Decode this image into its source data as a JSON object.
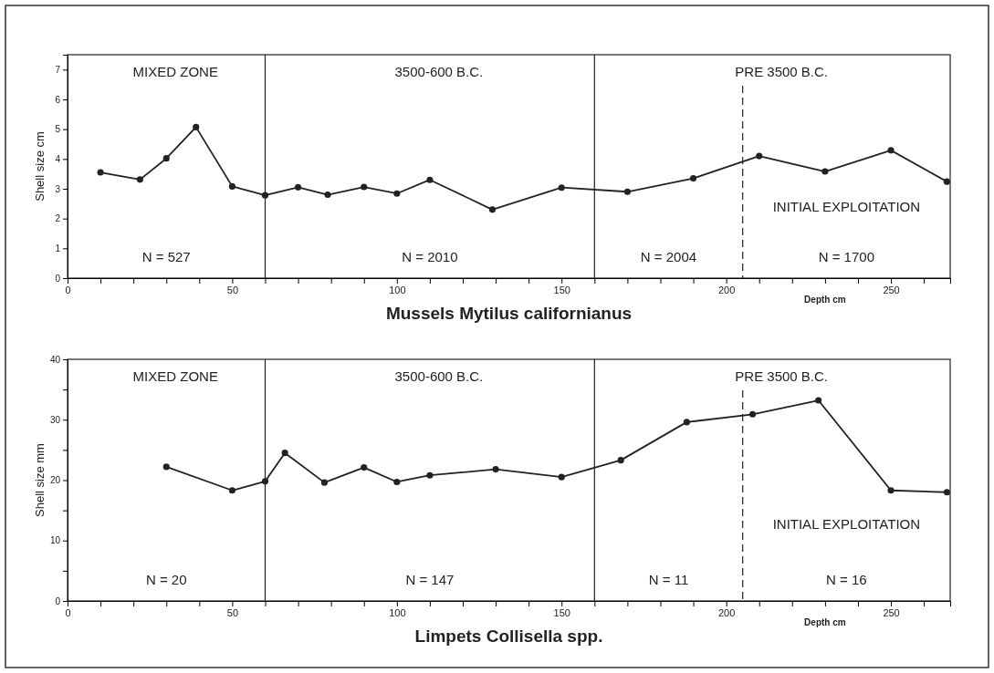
{
  "chart_data": [
    {
      "type": "line",
      "title": "Mussels Mytilus californianus",
      "xlabel": "Depth cm",
      "ylabel": "Shell size cm",
      "x": [
        10,
        22,
        30,
        39,
        50,
        60,
        70,
        79,
        90,
        100,
        110,
        129,
        150,
        170,
        190,
        210,
        230,
        250,
        267
      ],
      "series": [
        {
          "color": "#222222",
          "values": [
            3.55,
            3.31,
            4.02,
            5.07,
            3.08,
            2.78,
            3.05,
            2.8,
            3.06,
            2.84,
            3.3,
            2.3,
            3.04,
            2.9,
            3.35,
            4.1,
            3.58,
            4.29,
            3.24
          ]
        }
      ],
      "xlim": [
        0,
        268
      ],
      "ylim": [
        0,
        7.5
      ],
      "xticks": [
        0,
        {
          "value": 10,
          "label": null
        },
        {
          "value": 20,
          "label": null
        },
        {
          "value": 30,
          "label": null
        },
        {
          "value": 40,
          "label": null
        },
        50,
        {
          "value": 60,
          "label": null
        },
        {
          "value": 70,
          "label": null
        },
        {
          "value": 80,
          "label": null
        },
        {
          "value": 90,
          "label": null
        },
        100,
        {
          "value": 110,
          "label": null
        },
        {
          "value": 120,
          "label": null
        },
        {
          "value": 130,
          "label": null
        },
        {
          "value": 140,
          "label": null
        },
        150,
        {
          "value": 160,
          "label": null
        },
        {
          "value": 170,
          "label": null
        },
        {
          "value": 180,
          "label": null
        },
        {
          "value": 190,
          "label": null
        },
        200,
        {
          "value": 210,
          "label": null
        },
        {
          "value": 220,
          "label": null
        },
        {
          "value": 230,
          "label": null
        },
        {
          "value": 240,
          "label": null
        },
        250,
        {
          "value": 260,
          "label": null
        }
      ],
      "yticks": [
        0,
        1,
        2,
        3,
        4,
        5,
        6,
        7
      ],
      "ref_lines": [
        {
          "axis": "x",
          "value": 60,
          "line_style": "solid"
        },
        {
          "axis": "x",
          "value": 160,
          "line_style": "solid"
        },
        {
          "axis": "x",
          "value": 205,
          "line_style": "dashed"
        }
      ],
      "annotations": [
        "MIXED ZONE",
        "3500-600 B.C.",
        "PRE 3500 B.C.",
        "INITIAL EXPLOITATION",
        "N = 527",
        "N = 2010",
        "N = 2004",
        "N = 1700"
      ],
      "marker": "circle",
      "line_style": "solid",
      "grid": false
    },
    {
      "type": "line",
      "title": "Limpets Collisella spp.",
      "xlabel": "Depth cm",
      "ylabel": "Shell size mm",
      "x": [
        30,
        50,
        60,
        66,
        78,
        90,
        100,
        110,
        130,
        150,
        168,
        188,
        208,
        228,
        250,
        267
      ],
      "series": [
        {
          "color": "#222222",
          "values": [
            22.2,
            18.3,
            19.8,
            24.5,
            19.6,
            22.1,
            19.7,
            20.8,
            21.8,
            20.5,
            23.3,
            29.6,
            30.9,
            33.2,
            18.3,
            18.0
          ]
        }
      ],
      "xlim": [
        0,
        268
      ],
      "ylim": [
        0,
        40
      ],
      "xticks": [
        0,
        {
          "value": 10,
          "label": null
        },
        {
          "value": 20,
          "label": null
        },
        {
          "value": 30,
          "label": null
        },
        {
          "value": 40,
          "label": null
        },
        50,
        {
          "value": 60,
          "label": null
        },
        {
          "value": 70,
          "label": null
        },
        {
          "value": 80,
          "label": null
        },
        {
          "value": 90,
          "label": null
        },
        100,
        {
          "value": 110,
          "label": null
        },
        {
          "value": 120,
          "label": null
        },
        {
          "value": 130,
          "label": null
        },
        {
          "value": 140,
          "label": null
        },
        150,
        {
          "value": 160,
          "label": null
        },
        {
          "value": 170,
          "label": null
        },
        {
          "value": 180,
          "label": null
        },
        {
          "value": 190,
          "label": null
        },
        200,
        {
          "value": 210,
          "label": null
        },
        {
          "value": 220,
          "label": null
        },
        {
          "value": 230,
          "label": null
        },
        {
          "value": 240,
          "label": null
        },
        250,
        {
          "value": 260,
          "label": null
        }
      ],
      "yticks": [
        0,
        {
          "value": 5,
          "label": null
        },
        10,
        {
          "value": 15,
          "label": null
        },
        20,
        {
          "value": 25,
          "label": null
        },
        30,
        {
          "value": 35,
          "label": null
        },
        40
      ],
      "ref_lines": [
        {
          "axis": "x",
          "value": 60,
          "line_style": "solid"
        },
        {
          "axis": "x",
          "value": 160,
          "line_style": "solid"
        },
        {
          "axis": "x",
          "value": 205,
          "line_style": "dashed"
        }
      ],
      "annotations": [
        "MIXED ZONE",
        "3500-600 B.C.",
        "PRE 3500 B.C.",
        "INITIAL EXPLOITATION",
        "N = 20",
        "N = 147",
        "N = 11",
        "N = 16"
      ],
      "marker": "circle",
      "line_style": "solid",
      "grid": false
    }
  ]
}
